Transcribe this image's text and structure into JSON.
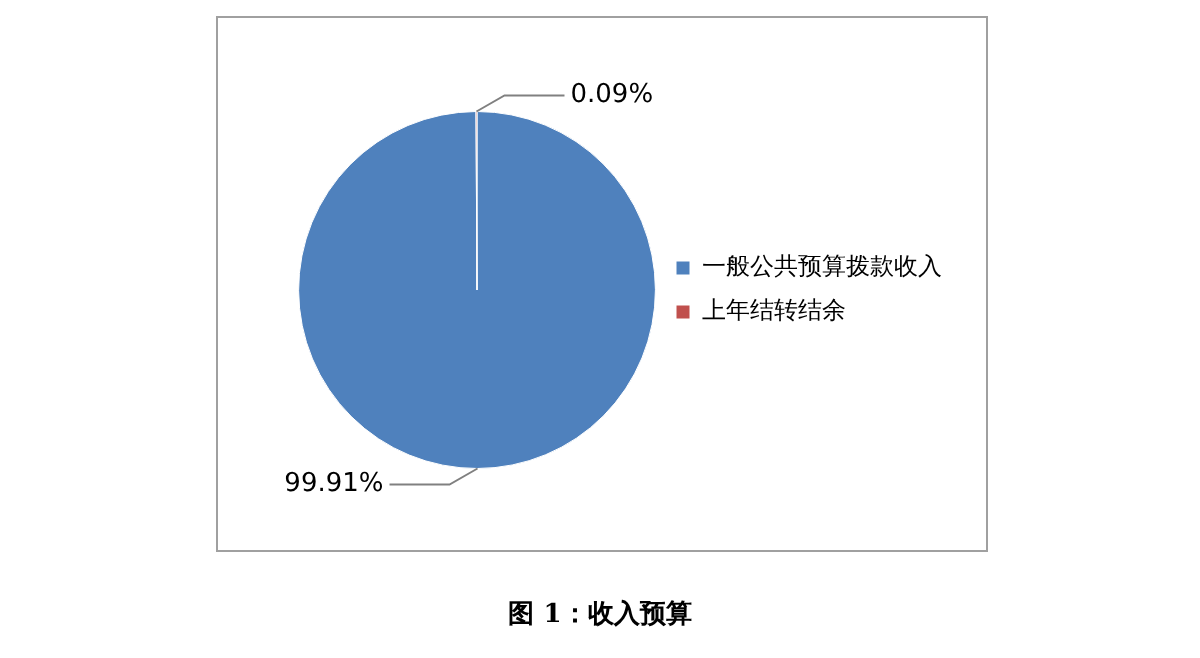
{
  "chart_data": {
    "type": "pie",
    "title": "图 1：收入预算",
    "categories": [
      "一般公共预算拨款收入",
      "上年结转结余"
    ],
    "values": [
      99.91,
      0.09
    ],
    "colors": [
      "#4f81bd",
      "#c0504d"
    ],
    "value_labels": [
      "99.91%",
      "0.09%"
    ],
    "legend": "right"
  }
}
